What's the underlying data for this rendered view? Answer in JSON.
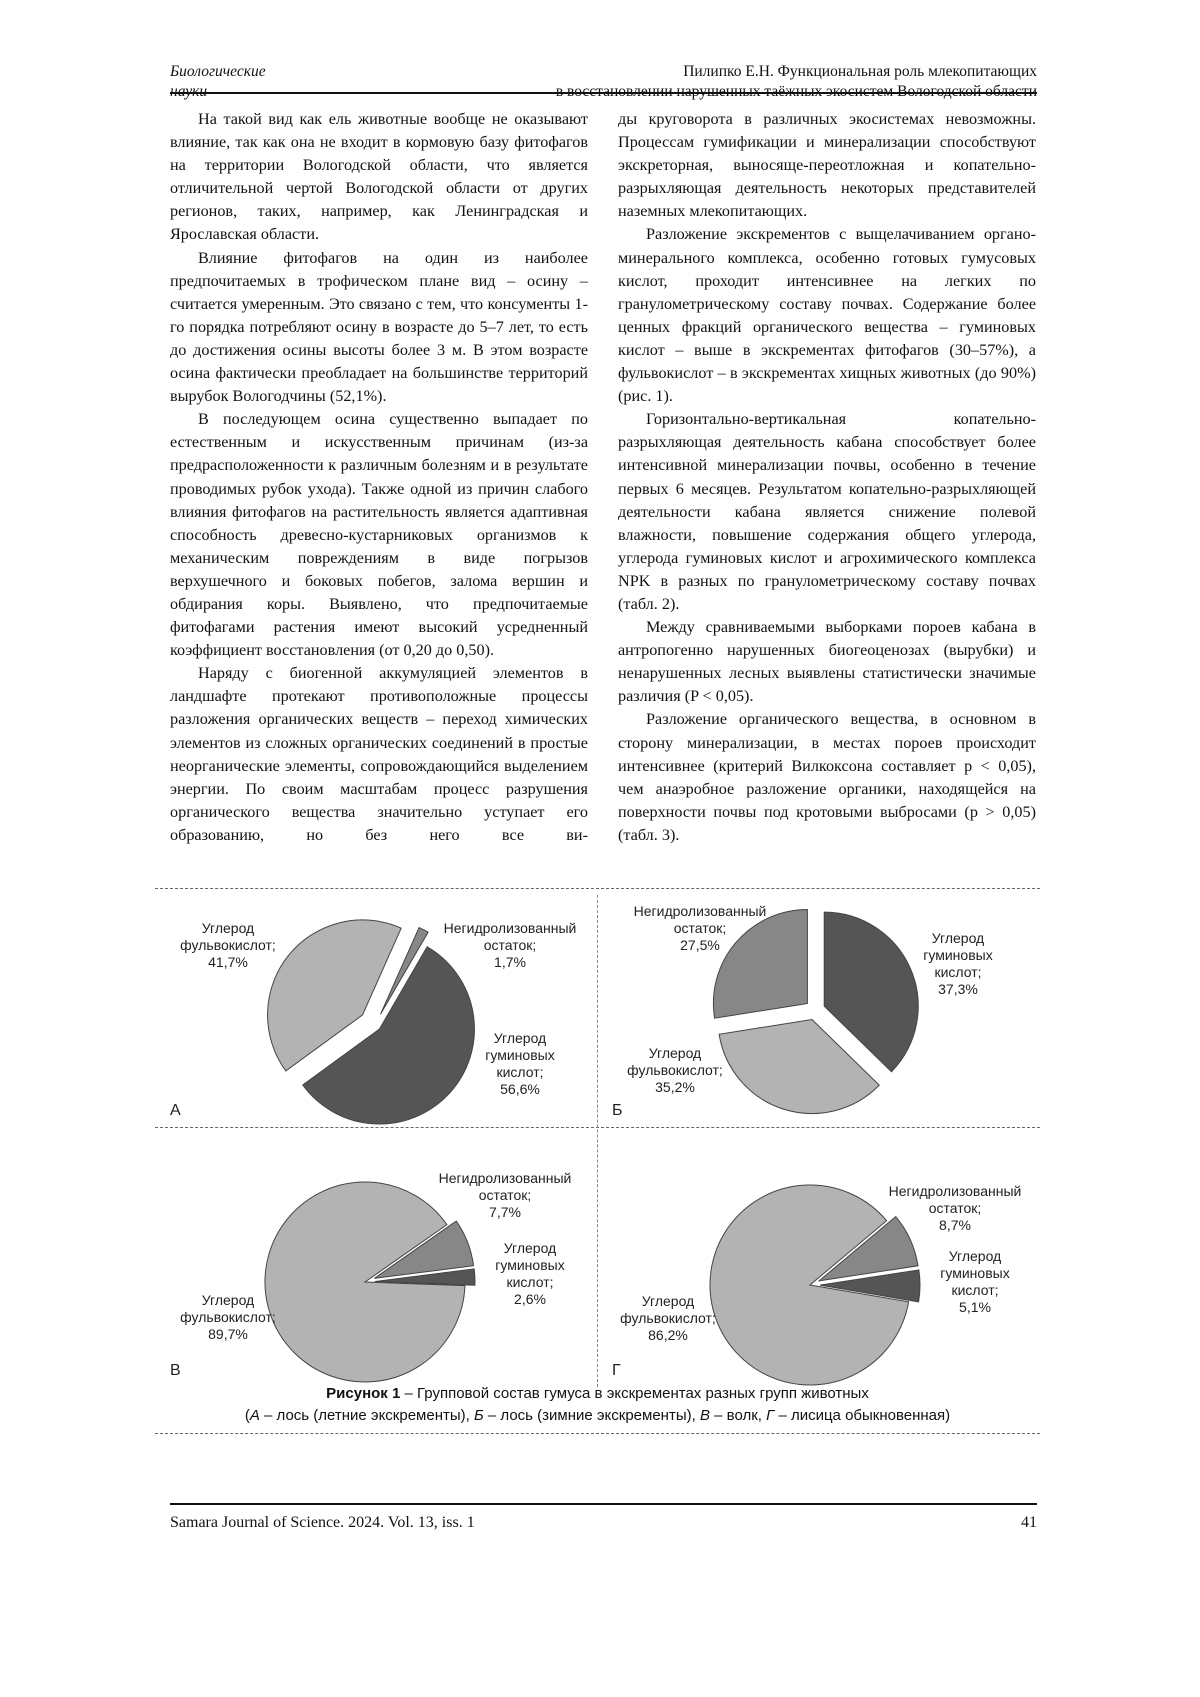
{
  "header": {
    "section_line1": "Биологические",
    "section_line2": "науки",
    "title_line1": "Пилипко Е.Н. Функциональная роль млекопитающих",
    "title_line2": "в восстановлении нарушенных таёжных экосистем Вологодской области"
  },
  "body": {
    "left": [
      "На такой вид как ель животные вообще не оказывают влияние, так как она не входит в кормовую базу фитофагов на территории Вологодской области, что является отличительной чертой Вологодской области от других регионов, таких, например, как Ленинградская и Ярославская области.",
      "Влияние фитофагов на один из наиболее предпочитаемых в трофическом плане вид – осину – считается умеренным. Это связано с тем, что консументы 1-го порядка потребляют осину в возрасте до 5–7 лет, то есть до достижения осины высоты более 3 м. В этом возрасте осина фактически преобладает на большинстве территорий вырубок Вологодчины (52,1%).",
      "В последующем осина существенно выпадает по естественным и искусственным причинам (из-за предрасположенности к различным болезням и в результате проводимых рубок ухода). Также одной из причин слабого влияния фитофагов на растительность является адаптивная способность древесно-кустарниковых организмов к механическим повреждениям в виде погрызов верхушечного и боковых побегов, залома вершин и обдирания коры. Выявлено, что предпочитаемые фитофагами растения имеют высокий усредненный коэффициент восстановления (от 0,20 до 0,50).",
      "Наряду с биогенной аккумуляцией элементов в ландшафте протекают противоположные процессы разложения органических веществ – переход химических элементов из сложных органических соединений в простые неорганические элементы, сопровождающийся выделением энергии. По своим масштабам процесс разрушения органического вещества значительно уступает его образованию, но без него все ви-"
    ],
    "right": [
      "ды круговорота в различных экосистемах невозможны. Процессам гумификации и минерализации способствуют экскреторная, выносяще-переотложная и копательно-разрыхляющая деятельность некоторых представителей наземных млекопитающих.",
      "Разложение экскрементов с выщелачиванием органо-минерального комплекса, особенно готовых гумусовых кислот, проходит интенсивнее на легких по гранулометрическому составу почвах. Содержание более ценных фракций органического вещества – гуминовых кислот – выше в экскрементах фитофагов (30–57%), а фульвокислот – в экскрементах хищных животных (до 90%) (рис. 1).",
      "Горизонтально-вертикальная копательно-разрыхляющая деятельность кабана способствует более интенсивной минерализации почвы, особенно в течение первых 6 месяцев. Результатом копательно-разрыхляющей деятельности кабана является снижение полевой влажности, повышение содержания общего углерода, углерода гуминовых кислот и агрохимического комплекса NPK в разных по гранулометрическому составу почвах (табл. 2).",
      "Между сравниваемыми выборками пороев кабана в антропогенно нарушенных биогеоценозах (вырубки) и ненарушенных лесных выявлены статистически значимые различия (P < 0,05).",
      "Разложение органического вещества, в основном в сторону минерализации, в местах пороев происходит интенсивнее (критерий Вилкоксона составляет p < 0,05), чем анаэробное разложение органики, находящейся на поверхности почвы под кротовыми выбросами (p > 0,05) (табл. 3)."
    ]
  },
  "figure": {
    "caption_bold": "Рисунок 1",
    "caption_rest": " – Групповой состав гумуса в экскрементах разных групп животных",
    "caption_line2": [
      {
        "text": "(",
        "italic": false
      },
      {
        "text": "А",
        "italic": true
      },
      {
        "text": " – лось (летние экскременты), ",
        "italic": false
      },
      {
        "text": "Б",
        "italic": true
      },
      {
        "text": " – лось (зимние экскременты), ",
        "italic": false
      },
      {
        "text": "В",
        "italic": true
      },
      {
        "text": " – волк, ",
        "italic": false
      },
      {
        "text": "Г",
        "italic": true
      },
      {
        "text": " – лисица обыкновенная)",
        "italic": false
      }
    ]
  },
  "colors": {
    "fulvic": "#b3b3b3",
    "unhydrolyzed": "#878787",
    "humic": "#555555",
    "stroke": "#444444"
  },
  "chart_data": [
    {
      "type": "pie",
      "panel": "А",
      "series": [
        {
          "name": "Негидролизованный остаток",
          "value": 1.7,
          "color_key": "unhydrolyzed"
        },
        {
          "name": "Углерод гуминовых кислот",
          "value": 56.6,
          "color_key": "humic"
        },
        {
          "name": "Углерод фульвокислот",
          "value": 41.7,
          "color_key": "fulvic"
        }
      ]
    },
    {
      "type": "pie",
      "panel": "Б",
      "series": [
        {
          "name": "Углерод гуминовых кислот",
          "value": 37.3,
          "color_key": "humic"
        },
        {
          "name": "Углерод фульвокислот",
          "value": 35.2,
          "color_key": "fulvic"
        },
        {
          "name": "Негидролизованный остаток",
          "value": 27.5,
          "color_key": "unhydrolyzed"
        }
      ]
    },
    {
      "type": "pie",
      "panel": "В",
      "series": [
        {
          "name": "Негидролизованный остаток",
          "value": 7.7,
          "color_key": "unhydrolyzed"
        },
        {
          "name": "Углерод гуминовых кислот",
          "value": 2.6,
          "color_key": "humic"
        },
        {
          "name": "Углерод фульвокислот",
          "value": 89.7,
          "color_key": "fulvic"
        }
      ]
    },
    {
      "type": "pie",
      "panel": "Г",
      "series": [
        {
          "name": "Негидролизованный остаток",
          "value": 8.7,
          "color_key": "unhydrolyzed"
        },
        {
          "name": "Углерод гуминовых кислот",
          "value": 5.1,
          "color_key": "humic"
        },
        {
          "name": "Углерод фульвокислот",
          "value": 86.2,
          "color_key": "fulvic"
        }
      ]
    }
  ],
  "footer": {
    "journal": "Samara Journal of Science. 2024. Vol. 13, iss. 1",
    "page": "41"
  }
}
